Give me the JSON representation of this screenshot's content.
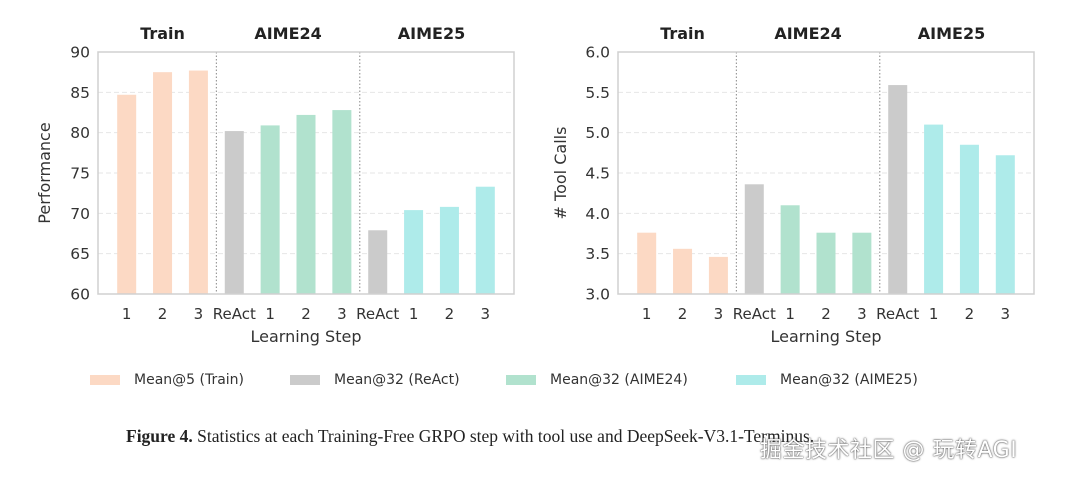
{
  "chart_data": [
    {
      "type": "bar",
      "ylabel": "Performance",
      "xlabel": "Learning Step",
      "ylim": [
        60,
        90
      ],
      "yticks": [
        60,
        65,
        70,
        75,
        80,
        85,
        90
      ],
      "grid": true,
      "groups": [
        {
          "title": "Train",
          "categories": [
            "1",
            "2",
            "3"
          ],
          "series": [
            "Mean@5 (Train)",
            "Mean@5 (Train)",
            "Mean@5 (Train)"
          ],
          "values": [
            84.7,
            87.5,
            87.7
          ]
        },
        {
          "title": "AIME24",
          "categories": [
            "ReAct",
            "1",
            "2",
            "3"
          ],
          "series": [
            "Mean@32 (ReAct)",
            "Mean@32 (AIME24)",
            "Mean@32 (AIME24)",
            "Mean@32 (AIME24)"
          ],
          "values": [
            80.2,
            80.9,
            82.2,
            82.8
          ]
        },
        {
          "title": "AIME25",
          "categories": [
            "ReAct",
            "1",
            "2",
            "3"
          ],
          "series": [
            "Mean@32 (ReAct)",
            "Mean@32 (AIME25)",
            "Mean@32 (AIME25)",
            "Mean@32 (AIME25)"
          ],
          "values": [
            67.9,
            70.4,
            70.8,
            73.3
          ]
        }
      ]
    },
    {
      "type": "bar",
      "ylabel": "# Tool Calls",
      "xlabel": "Learning Step",
      "ylim": [
        3.0,
        6.0
      ],
      "yticks": [
        "3.0",
        "3.5",
        "4.0",
        "4.5",
        "5.0",
        "5.5",
        "6.0"
      ],
      "grid": true,
      "groups": [
        {
          "title": "Train",
          "categories": [
            "1",
            "2",
            "3"
          ],
          "series": [
            "Mean@5 (Train)",
            "Mean@5 (Train)",
            "Mean@5 (Train)"
          ],
          "values": [
            3.76,
            3.56,
            3.46
          ]
        },
        {
          "title": "AIME24",
          "categories": [
            "ReAct",
            "1",
            "2",
            "3"
          ],
          "series": [
            "Mean@32 (ReAct)",
            "Mean@32 (AIME24)",
            "Mean@32 (AIME24)",
            "Mean@32 (AIME24)"
          ],
          "values": [
            4.36,
            4.1,
            3.76,
            3.76
          ]
        },
        {
          "title": "AIME25",
          "categories": [
            "ReAct",
            "1",
            "2",
            "3"
          ],
          "series": [
            "Mean@32 (ReAct)",
            "Mean@32 (AIME25)",
            "Mean@32 (AIME25)",
            "Mean@32 (AIME25)"
          ],
          "values": [
            5.59,
            5.1,
            4.85,
            4.72
          ]
        }
      ]
    }
  ],
  "legend": {
    "placement": "bottom",
    "items": [
      {
        "label": "Mean@5 (Train)",
        "color": "#FCD9C4"
      },
      {
        "label": "Mean@32 (ReAct)",
        "color": "#CBCBCB"
      },
      {
        "label": "Mean@32 (AIME24)",
        "color": "#B1E2CE"
      },
      {
        "label": "Mean@32 (AIME25)",
        "color": "#AEEBEA"
      }
    ]
  },
  "caption": {
    "label": "Figure 4.",
    "text": " Statistics at each Training-Free GRPO step with tool use and DeepSeek-V3.1-Terminus."
  },
  "watermark": "掘金技术社区 @ 玩转AGI"
}
